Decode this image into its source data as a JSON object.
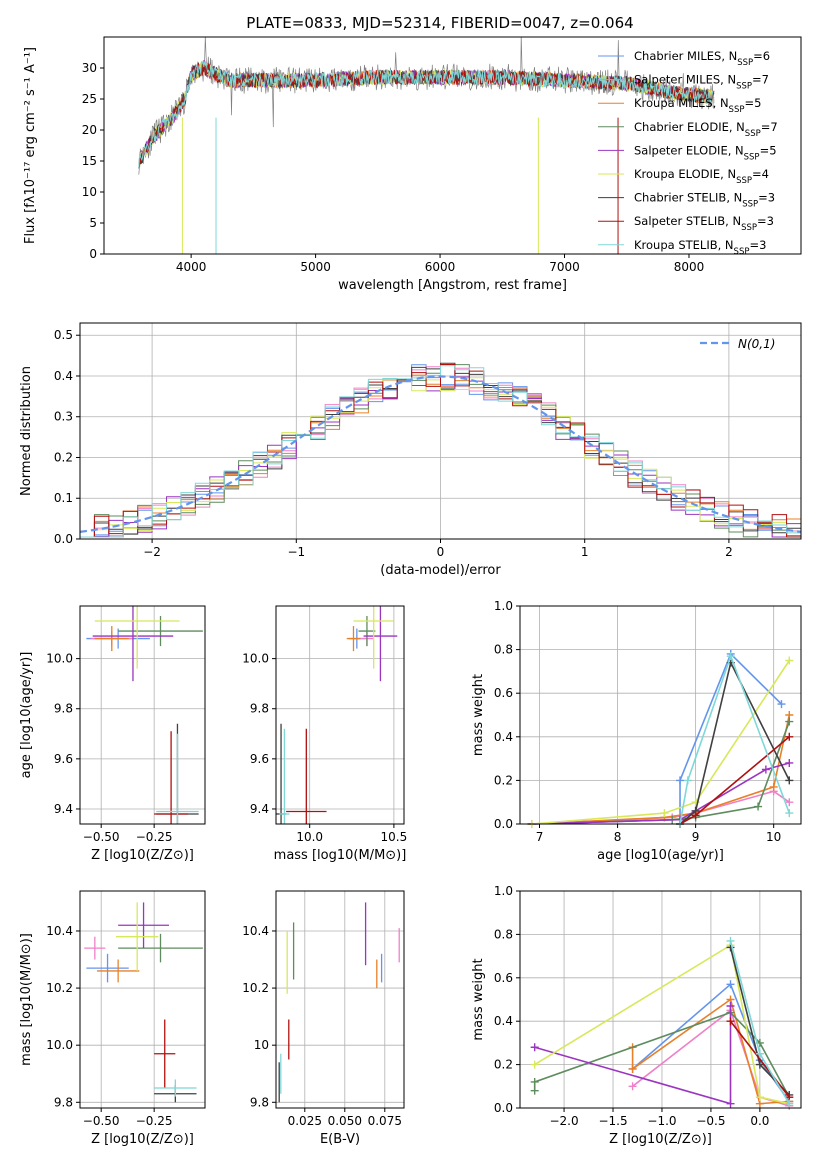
{
  "title": "PLATE=0833, MJD=52314, FIBERID=0047, z=0.064",
  "colors": {
    "c1": "#6495ED",
    "c2": "#F080C8",
    "c3": "#E8802A",
    "c4": "#5E8C5E",
    "c5": "#9B35C0",
    "c6": "#D8E85A",
    "c7": "#404040",
    "c8": "#B01010",
    "c9": "#7ED8D8",
    "grid": "#b0b0b0"
  },
  "chart_data": [
    {
      "type": "line",
      "id": "spectrum",
      "title": "PLATE=0833, MJD=52314, FIBERID=0047, z=0.064",
      "xlabel": "wavelength [Angstrom, rest frame]",
      "ylabel": "Flux [fλ10⁻¹⁷ erg cm⁻² s⁻¹ A⁻¹]",
      "xlim": [
        3300,
        8900
      ],
      "ylim": [
        0,
        35
      ],
      "xticks": [
        4000,
        5000,
        6000,
        7000,
        8000
      ],
      "yticks": [
        0,
        5,
        10,
        15,
        20,
        25,
        30
      ],
      "grid": false,
      "legend_position": "top-right",
      "continuum": {
        "x": [
          3580,
          3700,
          3850,
          3950,
          4000,
          4100,
          4300,
          4600,
          5000,
          5500,
          6000,
          6500,
          7000,
          7500,
          7900,
          8300,
          8800
        ],
        "y": [
          15,
          19,
          22,
          25,
          29,
          30,
          28,
          28,
          28,
          28.5,
          28.5,
          28.5,
          28,
          27.5,
          26,
          25,
          24
        ]
      },
      "series": [
        {
          "name": "Chabrier MILES, N_SSP=6",
          "color": "#6495ED"
        },
        {
          "name": "Salpeter MILES, N_SSP=7",
          "color": "#F080C8"
        },
        {
          "name": "Kroupa MILES, N_SSP=5",
          "color": "#E8802A"
        },
        {
          "name": "Chabrier ELODIE, N_SSP=7",
          "color": "#5E8C5E"
        },
        {
          "name": "Salpeter ELODIE, N_SSP=5",
          "color": "#9B35C0"
        },
        {
          "name": "Kroupa ELODIE, N_SSP=4",
          "color": "#D8E85A"
        },
        {
          "name": "Chabrier STELIB, N_SSP=3",
          "color": "#404040"
        },
        {
          "name": "Salpeter STELIB, N_SSP=3",
          "color": "#B01010"
        },
        {
          "name": "Kroupa STELIB, N_SSP=3",
          "color": "#7ED8D8"
        }
      ]
    },
    {
      "type": "step",
      "id": "residuals",
      "xlabel": "(data-model)/error",
      "ylabel": "Normed distribution",
      "xlim": [
        -2.5,
        2.5
      ],
      "ylim": [
        0,
        0.53
      ],
      "xticks": [
        -2,
        -1,
        0,
        1,
        2
      ],
      "yticks": [
        0.0,
        0.1,
        0.2,
        0.3,
        0.4,
        0.5
      ],
      "grid": true,
      "legend_position": "top-right",
      "reference": {
        "name": "N(0,1)",
        "mean": 0,
        "sigma": 1,
        "color": "#6495ED"
      },
      "bins": {
        "start": -2.5,
        "width": 0.1,
        "count": 50
      }
    },
    {
      "type": "errorbar",
      "id": "z-age",
      "xlabel": "Z [log10(Z/Z⊙)]",
      "ylabel": "age  [log10(age/yr)]",
      "xlim": [
        -0.6,
        -0.01
      ],
      "ylim": [
        9.34,
        10.21
      ],
      "xticks": [
        -0.5,
        -0.25
      ],
      "yticks": [
        9.4,
        9.6,
        9.8,
        10.0
      ],
      "grid": true,
      "points": [
        {
          "x": -0.42,
          "y": 10.08,
          "xerr": 0.15,
          "yerr": 0.04,
          "color": "#6495ED"
        },
        {
          "x": -0.45,
          "y": 10.08,
          "xerr": 0.1,
          "yerr": 0.03,
          "color": "#F080C8"
        },
        {
          "x": -0.45,
          "y": 10.08,
          "xerr": 0.08,
          "yerr": 0.05,
          "color": "#E8802A"
        },
        {
          "x": -0.22,
          "y": 10.11,
          "xerr": 0.2,
          "yerr": 0.06,
          "color": "#5E8C5E"
        },
        {
          "x": -0.35,
          "y": 10.09,
          "xerr": 0.19,
          "yerr": 0.18,
          "color": "#9B35C0"
        },
        {
          "x": -0.33,
          "y": 10.15,
          "xerr": 0.2,
          "yerr": 0.19,
          "color": "#D8E85A"
        },
        {
          "x": -0.14,
          "y": 9.38,
          "xerr": 0.1,
          "yerr": 0.36,
          "color": "#404040"
        },
        {
          "x": -0.17,
          "y": 9.38,
          "xerr": 0.08,
          "yerr": 0.33,
          "color": "#B01010"
        },
        {
          "x": -0.14,
          "y": 9.39,
          "xerr": 0.1,
          "yerr": 0.31,
          "color": "#7ED8D8"
        }
      ]
    },
    {
      "type": "errorbar",
      "id": "mass-age",
      "xlabel": "mass [log10(M/M⊙)]",
      "ylabel": "",
      "xlim": [
        9.8,
        10.56
      ],
      "ylim": [
        9.34,
        10.21
      ],
      "xticks": [
        10.0,
        10.5
      ],
      "yticks": [
        9.4,
        9.6,
        9.8,
        10.0
      ],
      "grid": true,
      "points": [
        {
          "x": 10.28,
          "y": 10.08,
          "xerr": 0.05,
          "yerr": 0.04,
          "color": "#6495ED"
        },
        {
          "x": 10.34,
          "y": 10.08,
          "xerr": 0.04,
          "yerr": 0.03,
          "color": "#F080C8"
        },
        {
          "x": 10.26,
          "y": 10.08,
          "xerr": 0.04,
          "yerr": 0.05,
          "color": "#E8802A"
        },
        {
          "x": 10.34,
          "y": 10.11,
          "xerr": 0.05,
          "yerr": 0.06,
          "color": "#5E8C5E"
        },
        {
          "x": 10.42,
          "y": 10.09,
          "xerr": 0.1,
          "yerr": 0.18,
          "color": "#9B35C0"
        },
        {
          "x": 10.38,
          "y": 10.15,
          "xerr": 0.12,
          "yerr": 0.19,
          "color": "#D8E85A"
        },
        {
          "x": 9.83,
          "y": 9.38,
          "xerr": 0.03,
          "yerr": 0.36,
          "color": "#404040"
        },
        {
          "x": 9.98,
          "y": 9.39,
          "xerr": 0.12,
          "yerr": 0.33,
          "color": "#B01010"
        },
        {
          "x": 9.85,
          "y": 9.38,
          "xerr": 0.03,
          "yerr": 0.34,
          "color": "#7ED8D8"
        }
      ]
    },
    {
      "type": "line",
      "id": "age-weight",
      "xlabel": "age  [log10(age/yr)]",
      "ylabel": "mass weight",
      "xlim": [
        6.75,
        10.35
      ],
      "ylim": [
        0,
        1.0
      ],
      "xticks": [
        7,
        8,
        9,
        10
      ],
      "yticks": [
        0.0,
        0.2,
        0.4,
        0.6,
        0.8,
        1.0
      ],
      "grid": true,
      "series": [
        {
          "color": "#6495ED",
          "x": [
            6.9,
            8.8,
            8.8,
            9.45,
            10.1
          ],
          "y": [
            0.0,
            0.02,
            0.2,
            0.78,
            0.55
          ]
        },
        {
          "color": "#F080C8",
          "x": [
            6.9,
            8.7,
            9.0,
            10.0,
            10.2
          ],
          "y": [
            0.0,
            0.03,
            0.05,
            0.15,
            0.1
          ]
        },
        {
          "color": "#E8802A",
          "x": [
            6.9,
            8.6,
            9.0,
            10.0,
            10.2
          ],
          "y": [
            0.0,
            0.03,
            0.05,
            0.17,
            0.5
          ]
        },
        {
          "color": "#5E8C5E",
          "x": [
            6.9,
            8.7,
            9.0,
            9.8,
            10.2
          ],
          "y": [
            0.0,
            0.02,
            0.03,
            0.08,
            0.47
          ]
        },
        {
          "color": "#9B35C0",
          "x": [
            6.9,
            8.8,
            9.0,
            9.9,
            10.2
          ],
          "y": [
            0.0,
            0.02,
            0.06,
            0.25,
            0.28
          ]
        },
        {
          "color": "#D8E85A",
          "x": [
            6.9,
            8.6,
            9.0,
            10.2
          ],
          "y": [
            0.0,
            0.05,
            0.1,
            0.75
          ]
        },
        {
          "color": "#404040",
          "x": [
            8.8,
            9.0,
            9.45,
            10.2
          ],
          "y": [
            0.0,
            0.06,
            0.74,
            0.2
          ]
        },
        {
          "color": "#B01010",
          "x": [
            8.8,
            9.0,
            10.2
          ],
          "y": [
            0.0,
            0.04,
            0.4
          ]
        },
        {
          "color": "#7ED8D8",
          "x": [
            8.8,
            8.9,
            9.45,
            10.2
          ],
          "y": [
            0.0,
            0.2,
            0.77,
            0.05
          ]
        }
      ]
    },
    {
      "type": "errorbar",
      "id": "z-mass",
      "xlabel": "Z [log10(Z/Z⊙)]",
      "ylabel": "mass [log10(M/M⊙)]",
      "xlim": [
        -0.6,
        -0.01
      ],
      "ylim": [
        9.78,
        10.54
      ],
      "xticks": [
        -0.5,
        -0.25
      ],
      "yticks": [
        9.8,
        10.0,
        10.2,
        10.4
      ],
      "grid": true,
      "points": [
        {
          "x": -0.47,
          "y": 10.27,
          "xerr": 0.1,
          "yerr": 0.05,
          "color": "#6495ED"
        },
        {
          "x": -0.53,
          "y": 10.34,
          "xerr": 0.05,
          "yerr": 0.04,
          "color": "#F080C8"
        },
        {
          "x": -0.42,
          "y": 10.26,
          "xerr": 0.1,
          "yerr": 0.04,
          "color": "#E8802A"
        },
        {
          "x": -0.22,
          "y": 10.34,
          "xerr": 0.2,
          "yerr": 0.05,
          "color": "#5E8C5E"
        },
        {
          "x": -0.3,
          "y": 10.42,
          "xerr": 0.12,
          "yerr": 0.08,
          "color": "#9B35C0"
        },
        {
          "x": -0.33,
          "y": 10.38,
          "xerr": 0.1,
          "yerr": 0.12,
          "color": "#D8E85A"
        },
        {
          "x": -0.15,
          "y": 9.83,
          "xerr": 0.1,
          "yerr": 0.03,
          "color": "#404040"
        },
        {
          "x": -0.2,
          "y": 9.97,
          "xerr": 0.05,
          "yerr": 0.12,
          "color": "#B01010"
        },
        {
          "x": -0.15,
          "y": 9.85,
          "xerr": 0.1,
          "yerr": 0.03,
          "color": "#7ED8D8"
        }
      ]
    },
    {
      "type": "errorbar",
      "id": "ebv-mass",
      "xlabel": "E(B-V)",
      "ylabel": "",
      "xlim": [
        0.007,
        0.087
      ],
      "ylim": [
        9.78,
        10.54
      ],
      "xticks": [
        0.025,
        0.05,
        0.075
      ],
      "yticks": [
        9.8,
        10.0,
        10.2,
        10.4
      ],
      "grid": true,
      "points": [
        {
          "x": 0.073,
          "y": 10.27,
          "xerr": 0,
          "yerr": 0.05,
          "color": "#6495ED"
        },
        {
          "x": 0.084,
          "y": 10.35,
          "xerr": 0,
          "yerr": 0.06,
          "color": "#F080C8"
        },
        {
          "x": 0.07,
          "y": 10.25,
          "xerr": 0,
          "yerr": 0.05,
          "color": "#E8802A"
        },
        {
          "x": 0.018,
          "y": 10.33,
          "xerr": 0,
          "yerr": 0.1,
          "color": "#5E8C5E"
        },
        {
          "x": 0.063,
          "y": 10.39,
          "xerr": 0,
          "yerr": 0.11,
          "color": "#9B35C0"
        },
        {
          "x": 0.014,
          "y": 10.29,
          "xerr": 0,
          "yerr": 0.11,
          "color": "#D8E85A"
        },
        {
          "x": 0.009,
          "y": 9.87,
          "xerr": 0,
          "yerr": 0.07,
          "color": "#404040"
        },
        {
          "x": 0.015,
          "y": 10.02,
          "xerr": 0,
          "yerr": 0.07,
          "color": "#B01010"
        },
        {
          "x": 0.01,
          "y": 9.9,
          "xerr": 0,
          "yerr": 0.07,
          "color": "#7ED8D8"
        }
      ]
    },
    {
      "type": "line",
      "id": "z-weight",
      "xlabel": "Z [log10(Z/Z⊙)]",
      "ylabel": "mass weight",
      "xlim": [
        -2.45,
        0.42
      ],
      "ylim": [
        0,
        1.0
      ],
      "xticks": [
        -2.0,
        -1.5,
        -1.0,
        -0.5,
        0.0
      ],
      "yticks": [
        0.0,
        0.2,
        0.4,
        0.6,
        0.8,
        1.0
      ],
      "grid": true,
      "series": [
        {
          "color": "#6495ED",
          "x": [
            -1.3,
            -0.3,
            0.0,
            0.3
          ],
          "y": [
            0.18,
            0.57,
            0.22,
            0.03
          ]
        },
        {
          "color": "#F080C8",
          "x": [
            -1.3,
            -0.3,
            0.0,
            0.3
          ],
          "y": [
            0.1,
            0.45,
            0.05,
            0.01
          ]
        },
        {
          "color": "#E8802A",
          "x": [
            -1.3,
            -1.3,
            -0.3,
            0.0,
            0.3
          ],
          "y": [
            0.28,
            0.18,
            0.5,
            0.02,
            0.03
          ]
        },
        {
          "color": "#5E8C5E",
          "x": [
            -2.3,
            -2.3,
            -0.3,
            0.0,
            0.3
          ],
          "y": [
            0.08,
            0.12,
            0.44,
            0.3,
            0.05
          ]
        },
        {
          "color": "#9B35C0",
          "x": [
            -2.3,
            -0.3,
            -0.3
          ],
          "y": [
            0.28,
            0.02,
            0.47
          ]
        },
        {
          "color": "#D8E85A",
          "x": [
            -2.3,
            -0.3,
            0.0,
            0.3
          ],
          "y": [
            0.2,
            0.75,
            0.05,
            0.02
          ]
        },
        {
          "color": "#404040",
          "x": [
            -0.3,
            0.0,
            0.3
          ],
          "y": [
            0.74,
            0.2,
            0.06
          ]
        },
        {
          "color": "#B01010",
          "x": [
            -0.3,
            0.3
          ],
          "y": [
            0.4,
            0.05
          ]
        },
        {
          "color": "#7ED8D8",
          "x": [
            -0.3,
            0.0,
            0.3
          ],
          "y": [
            0.77,
            0.25,
            0.02
          ]
        }
      ]
    }
  ]
}
